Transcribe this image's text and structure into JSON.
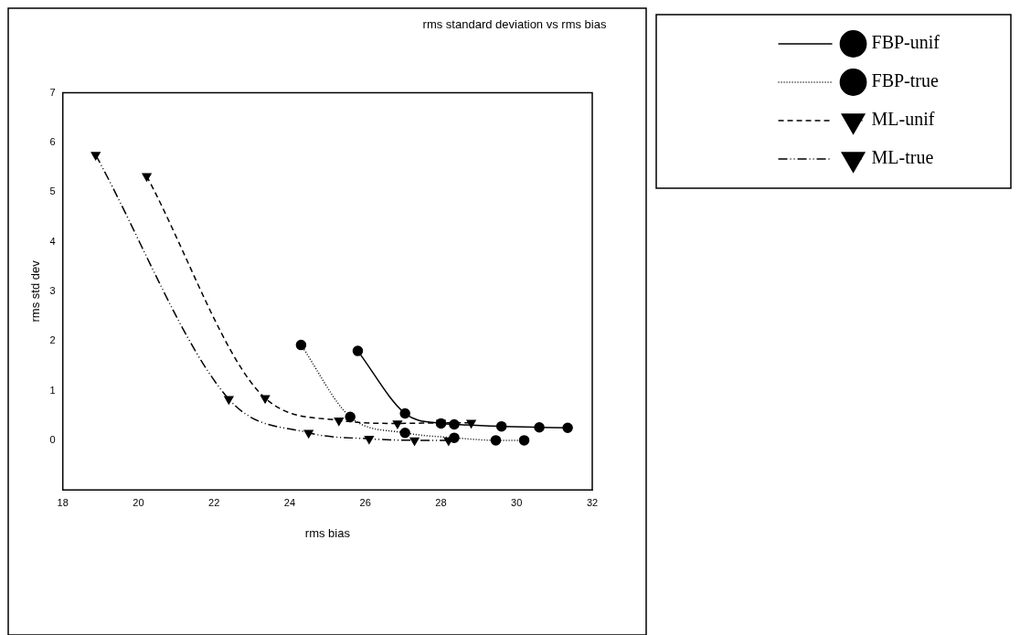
{
  "chart_data": {
    "type": "line",
    "title": "rms standard deviation vs rms bias",
    "xlabel": "rms bias",
    "ylabel": "rms std dev",
    "xlim": [
      18,
      32
    ],
    "xticks": [
      18,
      20,
      22,
      24,
      26,
      28,
      30,
      32
    ],
    "ylim": [
      -1,
      7
    ],
    "yticks": [
      {
        "value": -1,
        "label": null
      },
      0,
      1,
      2,
      3,
      4,
      5,
      6,
      7
    ],
    "grid": false,
    "legend": "right",
    "series": [
      {
        "name": "FBP-unif",
        "color": "#000000",
        "marker": "circle",
        "line_style": "solid",
        "x": [
          25.8,
          27.05,
          28.0,
          28.35,
          29.6,
          30.6,
          31.35
        ],
        "values": [
          1.8,
          0.54,
          0.34,
          0.32,
          0.28,
          0.26,
          0.25
        ]
      },
      {
        "name": "FBP-true",
        "color": "#000000",
        "marker": "circle",
        "line_style": "dotted",
        "x": [
          24.3,
          25.6,
          27.05,
          28.35,
          29.45,
          30.2
        ],
        "values": [
          1.92,
          0.47,
          0.15,
          0.05,
          0.0,
          0.0
        ]
      },
      {
        "name": "ML-unif",
        "color": "#000000",
        "marker": "triangle",
        "line_style": "dashed",
        "x": [
          20.22,
          23.35,
          25.3,
          26.85,
          28.0,
          28.8
        ],
        "values": [
          5.32,
          0.85,
          0.4,
          0.34,
          0.35,
          0.35
        ]
      },
      {
        "name": "ML-true",
        "color": "#000000",
        "marker": "triangle",
        "line_style": "dashdot",
        "x": [
          18.87,
          22.39,
          24.5,
          26.1,
          27.3,
          28.2
        ],
        "values": [
          5.75,
          0.83,
          0.15,
          0.03,
          0.0,
          0.0
        ]
      }
    ]
  }
}
